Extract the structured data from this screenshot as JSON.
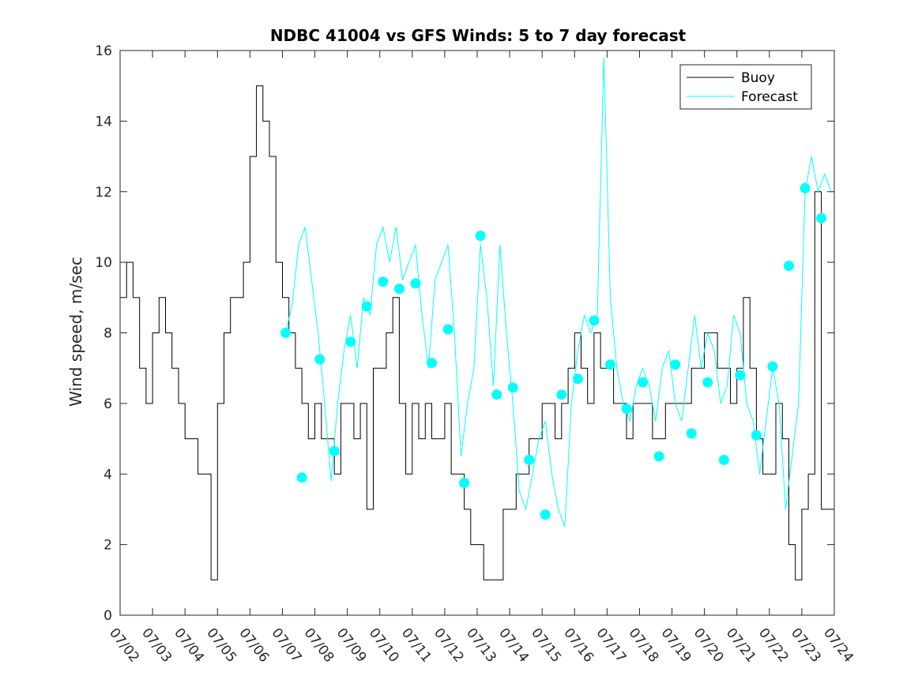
{
  "chart_data": {
    "type": "line",
    "title": "NDBC 41004 vs GFS Winds: 5 to 7 day forecast",
    "xlabel": "",
    "ylabel": "Wind speed, m/sec",
    "x_range_days": [
      2,
      24
    ],
    "xlim": [
      "07/02",
      "07/24"
    ],
    "ylim": [
      0,
      16
    ],
    "x_ticks": [
      "07/02",
      "07/03",
      "07/04",
      "07/05",
      "07/06",
      "07/07",
      "07/08",
      "07/09",
      "07/10",
      "07/11",
      "07/12",
      "07/13",
      "07/14",
      "07/15",
      "07/16",
      "07/17",
      "07/18",
      "07/19",
      "07/20",
      "07/21",
      "07/22",
      "07/23",
      "07/24"
    ],
    "y_ticks": [
      "0",
      "2",
      "4",
      "6",
      "8",
      "10",
      "12",
      "14",
      "16"
    ],
    "grid": false,
    "legend": {
      "position": "top-right",
      "entries": [
        "Buoy",
        "Forecast"
      ]
    },
    "colors": {
      "buoy": "#000000",
      "forecast": "#00ffff",
      "marker": "#00ffff"
    },
    "series": [
      {
        "name": "Buoy",
        "x": [
          2.0,
          2.2,
          2.4,
          2.6,
          2.8,
          3.0,
          3.2,
          3.4,
          3.6,
          3.8,
          4.0,
          4.2,
          4.4,
          4.6,
          4.8,
          5.0,
          5.2,
          5.4,
          5.6,
          5.8,
          6.0,
          6.2,
          6.4,
          6.6,
          6.8,
          7.0,
          7.2,
          7.4,
          7.6,
          7.8,
          8.0,
          8.2,
          8.4,
          8.6,
          8.8,
          9.0,
          9.2,
          9.4,
          9.6,
          9.8,
          10.0,
          10.2,
          10.4,
          10.6,
          10.8,
          11.0,
          11.2,
          11.4,
          11.6,
          11.8,
          12.0,
          12.2,
          12.4,
          12.6,
          12.8,
          13.0,
          13.2,
          13.4,
          13.6,
          13.8,
          14.0,
          14.2,
          14.4,
          14.6,
          14.8,
          15.0,
          15.2,
          15.4,
          15.6,
          15.8,
          16.0,
          16.2,
          16.4,
          16.6,
          16.8,
          17.0,
          17.2,
          17.4,
          17.6,
          17.8,
          18.0,
          18.2,
          18.4,
          18.6,
          18.8,
          19.0,
          19.2,
          19.4,
          19.6,
          19.8,
          20.0,
          20.2,
          20.4,
          20.6,
          20.8,
          21.0,
          21.2,
          21.4,
          21.6,
          21.8,
          22.0,
          22.2,
          22.4,
          22.6,
          22.8,
          23.0,
          23.2,
          23.4,
          23.6,
          23.8,
          24.0
        ],
        "y": [
          9,
          10,
          9,
          7,
          6,
          8,
          9,
          8,
          7,
          6,
          5,
          5,
          4,
          4,
          1,
          6,
          8,
          9,
          9,
          10,
          13,
          15,
          14,
          13,
          10,
          9,
          8,
          7,
          6,
          5,
          6,
          5,
          5,
          4,
          6,
          6,
          5,
          6,
          3,
          7,
          7,
          8,
          9,
          6,
          4,
          6,
          5,
          6,
          5,
          5,
          6,
          4,
          4,
          3,
          2,
          2,
          1,
          1,
          1,
          3,
          3,
          4,
          4,
          5,
          5,
          6,
          6,
          5,
          6,
          7,
          8,
          7,
          6,
          8,
          7,
          7,
          6,
          6,
          5,
          6,
          6,
          6,
          5,
          5,
          6,
          6,
          6,
          6,
          7,
          7,
          8,
          8,
          7,
          7,
          6,
          7,
          9,
          7,
          5,
          4,
          4,
          6,
          5,
          2,
          1,
          3,
          4,
          12,
          3,
          3,
          4
        ]
      },
      {
        "name": "Forecast",
        "x": [
          7.1,
          7.3,
          7.5,
          7.7,
          7.9,
          8.1,
          8.3,
          8.5,
          8.7,
          8.9,
          9.1,
          9.3,
          9.5,
          9.7,
          9.9,
          10.1,
          10.3,
          10.5,
          10.7,
          10.9,
          11.1,
          11.3,
          11.5,
          11.7,
          11.9,
          12.1,
          12.3,
          12.5,
          12.7,
          12.9,
          13.1,
          13.3,
          13.5,
          13.7,
          13.9,
          14.1,
          14.3,
          14.5,
          14.7,
          14.9,
          15.1,
          15.3,
          15.5,
          15.7,
          15.9,
          16.1,
          16.3,
          16.5,
          16.7,
          16.9,
          17.1,
          17.3,
          17.5,
          17.7,
          17.9,
          18.1,
          18.3,
          18.5,
          18.7,
          18.9,
          19.1,
          19.3,
          19.5,
          19.7,
          19.9,
          20.1,
          20.3,
          20.5,
          20.7,
          20.9,
          21.1,
          21.3,
          21.5,
          21.7,
          21.9,
          22.1,
          22.3,
          22.5,
          22.7,
          22.9,
          23.1,
          23.3,
          23.5,
          23.7,
          23.9
        ],
        "y": [
          8,
          8.8,
          10.5,
          11,
          9.5,
          8,
          6,
          3.8,
          6,
          7.5,
          8.5,
          7,
          9,
          8.5,
          10.5,
          11,
          10,
          11,
          9.5,
          10,
          10.5,
          8.5,
          7,
          9.5,
          10,
          10.5,
          8,
          4.5,
          6,
          7,
          10.5,
          9,
          6.5,
          10.5,
          8,
          6,
          3.5,
          3,
          4,
          5,
          5.5,
          4,
          3,
          2.5,
          6,
          7.5,
          8.5,
          8,
          8.5,
          15.8,
          9,
          7,
          6,
          5.5,
          6.5,
          7,
          6.5,
          5.5,
          7,
          7.5,
          6,
          5.5,
          7,
          8.5,
          7,
          8,
          7.5,
          6,
          6.5,
          8.5,
          8,
          6,
          5.5,
          4,
          5.5,
          7,
          6,
          3,
          4.5,
          6,
          12,
          13,
          12,
          12.5,
          12
        ]
      }
    ],
    "markers": {
      "name": "Forecast",
      "x": [
        7.1,
        7.6,
        8.15,
        8.6,
        9.1,
        9.6,
        10.1,
        10.6,
        11.1,
        11.6,
        12.1,
        12.6,
        13.1,
        13.6,
        14.1,
        14.6,
        15.1,
        15.6,
        16.1,
        16.6,
        17.1,
        17.6,
        18.1,
        18.6,
        19.1,
        19.6,
        20.1,
        20.6,
        21.1,
        21.6,
        22.1,
        22.6,
        23.1,
        23.6
      ],
      "y": [
        8.0,
        3.9,
        7.25,
        4.65,
        7.75,
        8.75,
        9.45,
        9.25,
        9.4,
        7.15,
        8.1,
        3.75,
        10.75,
        6.25,
        6.45,
        4.4,
        2.85,
        6.25,
        6.7,
        8.35,
        7.1,
        5.85,
        6.6,
        4.5,
        7.1,
        5.15,
        6.6,
        4.4,
        6.8,
        5.1,
        7.05,
        9.9,
        12.1,
        11.25
      ]
    }
  }
}
